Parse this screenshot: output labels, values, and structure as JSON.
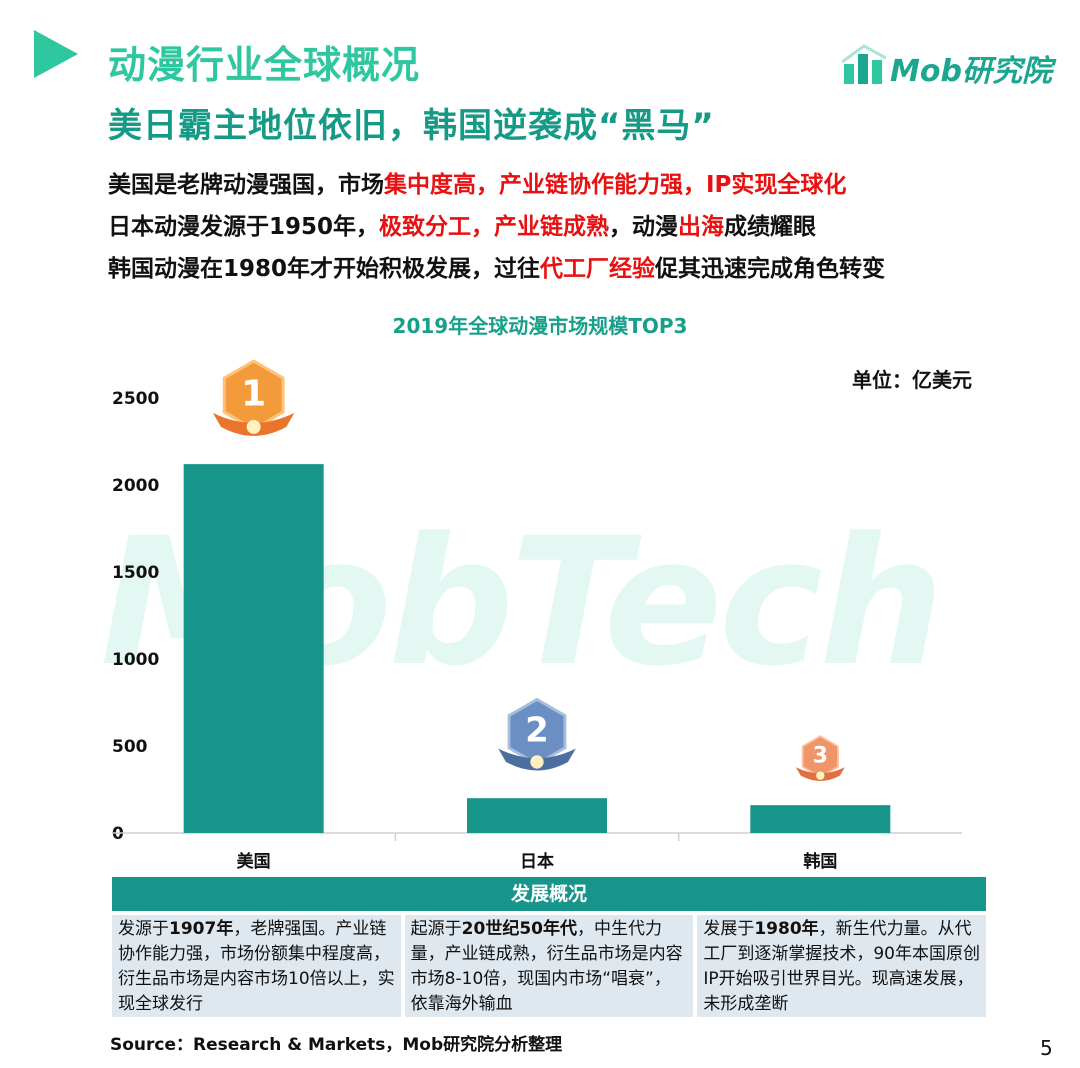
{
  "header": {
    "title": "动漫行业全球概况",
    "subtitle": "美日霸主地位依旧，韩国逆袭成“黑马”",
    "logo_text": "Mob研究院",
    "logo_icon": "bar-chart-house-icon",
    "accent_color": "#2ec7a0"
  },
  "bullets": [
    {
      "segments": [
        {
          "text": "美国是老牌动漫强国，市场",
          "highlight": false
        },
        {
          "text": "集中度高，产业链协作能力强，IP实现全球化",
          "highlight": true
        }
      ]
    },
    {
      "segments": [
        {
          "text": "日本动漫发源于1950年，",
          "highlight": false
        },
        {
          "text": "极致分工，产业链成熟",
          "highlight": true
        },
        {
          "text": "，动漫",
          "highlight": false
        },
        {
          "text": "出海",
          "highlight": true
        },
        {
          "text": "成绩耀眼",
          "highlight": false
        }
      ]
    },
    {
      "segments": [
        {
          "text": "韩国动漫在1980年才开始积极发展，过往",
          "highlight": false
        },
        {
          "text": "代工厂经验",
          "highlight": true
        },
        {
          "text": "促其迅速完成角色转变",
          "highlight": false
        }
      ]
    }
  ],
  "watermark": "MobTech",
  "chart_data": {
    "type": "bar",
    "title": "2019年全球动漫市场规模TOP3",
    "unit_label": "单位：亿美元",
    "categories": [
      "美国",
      "日本",
      "韩国"
    ],
    "values": [
      2120,
      200,
      160
    ],
    "ylim": [
      0,
      2500
    ],
    "yticks": [
      0,
      500,
      1000,
      1500,
      2000,
      2500
    ],
    "rank_badges": [
      "1",
      "2",
      "3"
    ],
    "bar_color": "#17958a",
    "grid": false,
    "legend": "none"
  },
  "table": {
    "header": "发展概况",
    "cells": [
      [
        {
          "text": "发源于",
          "bold": false
        },
        {
          "text": "1907年",
          "bold": true
        },
        {
          "text": "，老牌强国。产业链协作能力强，市场份额集中程度高，衍生品市场是内容市场10倍以上，实现全球发行",
          "bold": false
        }
      ],
      [
        {
          "text": "起源于",
          "bold": false
        },
        {
          "text": "20世纪50年代",
          "bold": true
        },
        {
          "text": "，中生代力量，产业链成熟，衍生品市场是内容市场8-10倍，现国内市场“唱衰”，依靠海外输血",
          "bold": false
        }
      ],
      [
        {
          "text": "发展于",
          "bold": false
        },
        {
          "text": "1980年",
          "bold": true
        },
        {
          "text": "，新生代力量。从代工厂到逐渐掌握技术，90年本国原创IP开始吸引世界目光。现高速发展，未形成垄断",
          "bold": false
        }
      ]
    ]
  },
  "footer": {
    "source": "Source：Research & Markets，Mob研究院分析整理",
    "page_number": "5"
  }
}
